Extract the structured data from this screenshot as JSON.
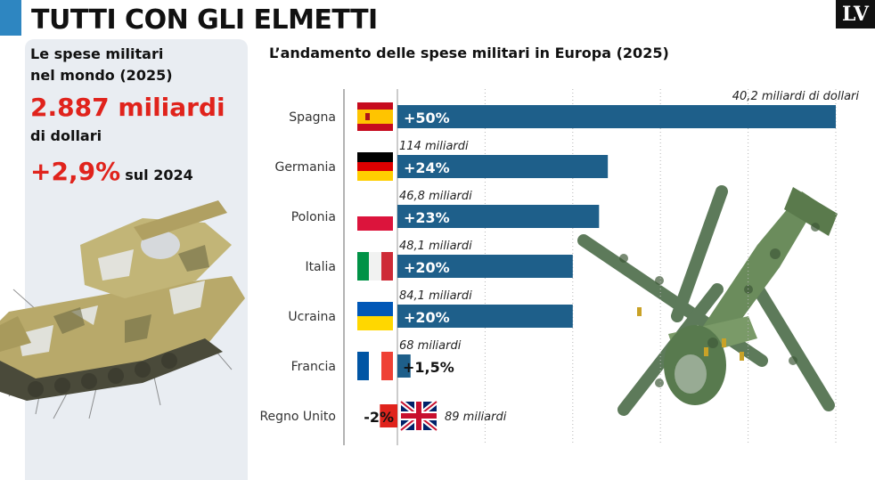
{
  "header": {
    "title": "TUTTI CON GLI ELMETTI",
    "logo": "LV"
  },
  "colors": {
    "accent": "#2e86c1",
    "bar": "#1e5f8a",
    "negative": "#e0231c",
    "highlight": "#e0231c",
    "panel": "#e9edf2"
  },
  "panel": {
    "heading_line1": "Le spese militari",
    "heading_line2": "nel mondo (2025)",
    "total": "2.887 miliardi",
    "unit": "di dollari",
    "change_pct": "+2,9%",
    "change_suffix": "sul 2024"
  },
  "images": {
    "tank": "tank-illustration",
    "helicopter": "attack-helicopter-illustration"
  },
  "chart_title": "L’andamento delle spese militari in Europa (2025)",
  "chart_data": {
    "type": "bar",
    "orientation": "horizontal",
    "title": "L’andamento delle spese militari in Europa (2025)",
    "xlabel": "",
    "ylabel": "",
    "xlim": [
      -2,
      50
    ],
    "categories": [
      "Spagna",
      "Germania",
      "Polonia",
      "Italia",
      "Ucraina",
      "Francia",
      "Regno Unito"
    ],
    "values": [
      50,
      24,
      23,
      20,
      20,
      1.5,
      -2
    ],
    "value_labels": [
      "+50%",
      "+24%",
      "+23%",
      "+20%",
      "+20%",
      "+1,5%",
      "-2%"
    ],
    "annotations": [
      "40,2 miliardi di dollari",
      "114 miliardi",
      "46,8 miliardi",
      "48,1 miliardi",
      "84,1 miliardi",
      "68 miliardi",
      "89 miliardi"
    ],
    "flags": [
      "spain-flag",
      "germany-flag",
      "poland-flag",
      "italy-flag",
      "ukraine-flag",
      "france-flag",
      "uk-flag"
    ]
  }
}
